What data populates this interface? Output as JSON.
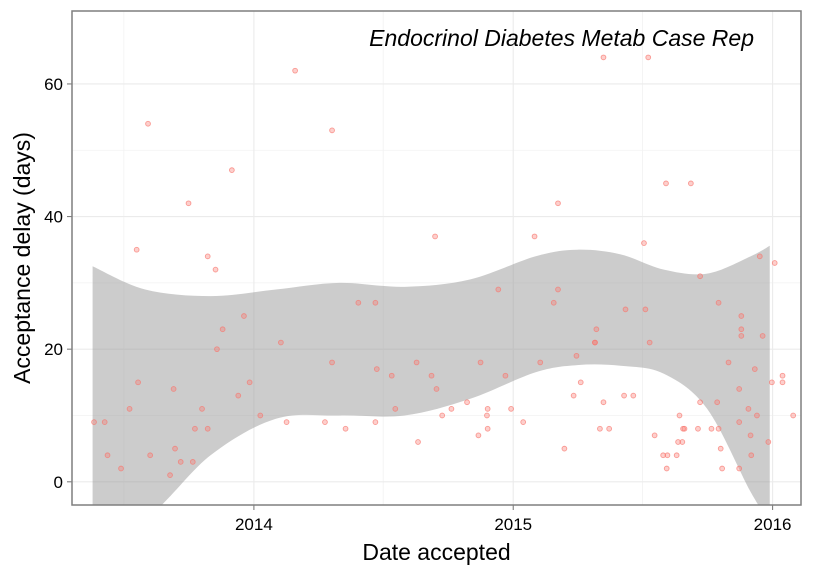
{
  "chart_data": {
    "type": "scatter",
    "annotation": "Endocrinol Diabetes Metab Case Rep",
    "xlabel": "Date accepted",
    "ylabel": "Acceptance delay (days)",
    "xlim": [
      "2013-04-20",
      "2016-02-10"
    ],
    "ylim": [
      -3.5,
      71
    ],
    "x_ticks": [
      {
        "date": "2014-01-01",
        "label": "2014"
      },
      {
        "date": "2015-01-01",
        "label": "2015"
      },
      {
        "date": "2016-01-01",
        "label": "2016"
      }
    ],
    "y_ticks": [
      0,
      20,
      40,
      60
    ],
    "grid": true,
    "point_color": "#F8766D",
    "ribbon_color": "#999999",
    "smooth_band": {
      "x": [
        "2013-05-19",
        "2013-08-01",
        "2013-11-01",
        "2014-02-01",
        "2014-05-01",
        "2014-08-01",
        "2014-11-01",
        "2015-02-01",
        "2015-04-01",
        "2015-06-01",
        "2015-08-01",
        "2015-10-01",
        "2015-12-01",
        "2015-12-28"
      ],
      "lower": [
        -6,
        -5.5,
        4,
        9.5,
        10,
        10,
        12.5,
        16.5,
        17.6,
        17.5,
        16.3,
        11,
        -1.5,
        -6
      ],
      "upper": [
        32.5,
        29,
        28,
        29,
        30,
        29.4,
        30.5,
        34,
        35,
        34.3,
        32,
        31.4,
        34,
        35.6
      ]
    },
    "points": [
      {
        "x": "2013-05-21",
        "y": 9
      },
      {
        "x": "2013-06-05",
        "y": 9
      },
      {
        "x": "2013-06-09",
        "y": 4
      },
      {
        "x": "2013-06-28",
        "y": 2
      },
      {
        "x": "2013-07-10",
        "y": 11
      },
      {
        "x": "2013-07-20",
        "y": 35
      },
      {
        "x": "2013-07-22",
        "y": 15
      },
      {
        "x": "2013-08-05",
        "y": 54
      },
      {
        "x": "2013-08-08",
        "y": 4
      },
      {
        "x": "2013-09-05",
        "y": 1
      },
      {
        "x": "2013-09-10",
        "y": 14
      },
      {
        "x": "2013-09-12",
        "y": 5
      },
      {
        "x": "2013-09-20",
        "y": 3
      },
      {
        "x": "2013-10-01",
        "y": 42
      },
      {
        "x": "2013-10-07",
        "y": 3
      },
      {
        "x": "2013-10-10",
        "y": 8
      },
      {
        "x": "2013-10-20",
        "y": 11
      },
      {
        "x": "2013-10-28",
        "y": 34
      },
      {
        "x": "2013-10-28",
        "y": 8
      },
      {
        "x": "2013-11-08",
        "y": 32
      },
      {
        "x": "2013-11-10",
        "y": 20
      },
      {
        "x": "2013-11-18",
        "y": 23
      },
      {
        "x": "2013-12-01",
        "y": 47
      },
      {
        "x": "2013-12-10",
        "y": 13
      },
      {
        "x": "2013-12-18",
        "y": 25
      },
      {
        "x": "2013-12-26",
        "y": 15
      },
      {
        "x": "2014-01-10",
        "y": 10
      },
      {
        "x": "2014-02-08",
        "y": 21
      },
      {
        "x": "2014-02-16",
        "y": 9
      },
      {
        "x": "2014-02-28",
        "y": 62
      },
      {
        "x": "2014-04-11",
        "y": 9
      },
      {
        "x": "2014-04-21",
        "y": 18
      },
      {
        "x": "2014-04-21",
        "y": 53
      },
      {
        "x": "2014-05-10",
        "y": 8
      },
      {
        "x": "2014-05-28",
        "y": 27
      },
      {
        "x": "2014-06-21",
        "y": 27
      },
      {
        "x": "2014-06-21",
        "y": 9
      },
      {
        "x": "2014-06-23",
        "y": 17
      },
      {
        "x": "2014-07-14",
        "y": 16
      },
      {
        "x": "2014-07-19",
        "y": 11
      },
      {
        "x": "2014-08-18",
        "y": 18
      },
      {
        "x": "2014-08-20",
        "y": 6
      },
      {
        "x": "2014-09-08",
        "y": 16
      },
      {
        "x": "2014-09-13",
        "y": 37
      },
      {
        "x": "2014-09-15",
        "y": 14
      },
      {
        "x": "2014-09-23",
        "y": 10
      },
      {
        "x": "2014-10-06",
        "y": 11
      },
      {
        "x": "2014-10-28",
        "y": 12
      },
      {
        "x": "2014-11-13",
        "y": 7
      },
      {
        "x": "2014-11-16",
        "y": 18
      },
      {
        "x": "2014-11-25",
        "y": 10
      },
      {
        "x": "2014-11-26",
        "y": 8
      },
      {
        "x": "2014-11-26",
        "y": 11
      },
      {
        "x": "2014-12-11",
        "y": 29
      },
      {
        "x": "2014-12-21",
        "y": 16
      },
      {
        "x": "2014-12-29",
        "y": 11
      },
      {
        "x": "2015-01-15",
        "y": 9
      },
      {
        "x": "2015-01-31",
        "y": 37
      },
      {
        "x": "2015-02-08",
        "y": 18
      },
      {
        "x": "2015-02-27",
        "y": 27
      },
      {
        "x": "2015-03-05",
        "y": 42
      },
      {
        "x": "2015-03-05",
        "y": 29
      },
      {
        "x": "2015-03-14",
        "y": 5
      },
      {
        "x": "2015-03-27",
        "y": 13
      },
      {
        "x": "2015-03-31",
        "y": 19
      },
      {
        "x": "2015-04-06",
        "y": 15
      },
      {
        "x": "2015-04-26",
        "y": 21
      },
      {
        "x": "2015-04-26",
        "y": 21
      },
      {
        "x": "2015-04-28",
        "y": 23
      },
      {
        "x": "2015-05-03",
        "y": 8
      },
      {
        "x": "2015-05-08",
        "y": 12
      },
      {
        "x": "2015-05-08",
        "y": 64
      },
      {
        "x": "2015-05-16",
        "y": 8
      },
      {
        "x": "2015-06-06",
        "y": 13
      },
      {
        "x": "2015-06-08",
        "y": 26
      },
      {
        "x": "2015-06-19",
        "y": 13
      },
      {
        "x": "2015-07-04",
        "y": 36
      },
      {
        "x": "2015-07-06",
        "y": 26
      },
      {
        "x": "2015-07-10",
        "y": 64
      },
      {
        "x": "2015-07-12",
        "y": 21
      },
      {
        "x": "2015-07-19",
        "y": 7
      },
      {
        "x": "2015-07-31",
        "y": 4
      },
      {
        "x": "2015-08-04",
        "y": 45
      },
      {
        "x": "2015-08-05",
        "y": 2
      },
      {
        "x": "2015-08-06",
        "y": 4
      },
      {
        "x": "2015-08-19",
        "y": 4
      },
      {
        "x": "2015-08-21",
        "y": 6
      },
      {
        "x": "2015-08-23",
        "y": 10
      },
      {
        "x": "2015-08-27",
        "y": 6
      },
      {
        "x": "2015-08-28",
        "y": 8
      },
      {
        "x": "2015-08-30",
        "y": 8
      },
      {
        "x": "2015-09-08",
        "y": 45
      },
      {
        "x": "2015-09-18",
        "y": 8
      },
      {
        "x": "2015-09-21",
        "y": 31
      },
      {
        "x": "2015-09-21",
        "y": 12
      },
      {
        "x": "2015-10-07",
        "y": 8
      },
      {
        "x": "2015-10-15",
        "y": 12
      },
      {
        "x": "2015-10-17",
        "y": 27
      },
      {
        "x": "2015-10-17",
        "y": 8
      },
      {
        "x": "2015-10-20",
        "y": 5
      },
      {
        "x": "2015-10-22",
        "y": 2
      },
      {
        "x": "2015-10-31",
        "y": 18
      },
      {
        "x": "2015-11-15",
        "y": 14
      },
      {
        "x": "2015-11-15",
        "y": 9
      },
      {
        "x": "2015-11-15",
        "y": 2
      },
      {
        "x": "2015-11-18",
        "y": 25
      },
      {
        "x": "2015-11-18",
        "y": 23
      },
      {
        "x": "2015-11-18",
        "y": 22
      },
      {
        "x": "2015-11-28",
        "y": 11
      },
      {
        "x": "2015-12-01",
        "y": 7
      },
      {
        "x": "2015-12-02",
        "y": 4
      },
      {
        "x": "2015-12-07",
        "y": 17
      },
      {
        "x": "2015-12-10",
        "y": 10
      },
      {
        "x": "2015-12-14",
        "y": 34
      },
      {
        "x": "2015-12-18",
        "y": 22
      },
      {
        "x": "2015-12-26",
        "y": 6
      },
      {
        "x": "2015-12-31",
        "y": 15
      },
      {
        "x": "2016-01-04",
        "y": 33
      },
      {
        "x": "2016-01-15",
        "y": 16
      },
      {
        "x": "2016-01-15",
        "y": 15
      },
      {
        "x": "2016-01-30",
        "y": 10
      }
    ]
  }
}
